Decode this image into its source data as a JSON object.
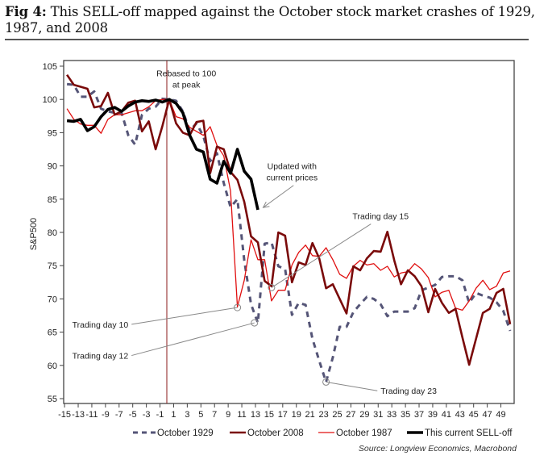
{
  "header": {
    "fig_label": "Fig 4:",
    "title_rest": " This SELL-off mapped against the October stock market crashes of 1929, 1987, and 2008"
  },
  "chart_data": {
    "type": "line",
    "title": "This SELL-off mapped against the October stock market crashes of 1929, 1987, and 2008",
    "xlabel": "",
    "ylabel": "S&P500",
    "xlim": [
      -15,
      51
    ],
    "ylim": [
      55,
      105
    ],
    "yticks": [
      55,
      60,
      65,
      70,
      75,
      80,
      85,
      90,
      95,
      100,
      105
    ],
    "xticks": [
      -15,
      -13,
      -11,
      -9,
      -7,
      -5,
      -3,
      -1,
      1,
      3,
      5,
      7,
      9,
      11,
      13,
      15,
      17,
      19,
      21,
      23,
      25,
      27,
      29,
      31,
      33,
      35,
      37,
      39,
      41,
      43,
      45,
      47,
      49
    ],
    "grid": false,
    "legend_position": "bottom",
    "reference_line": {
      "x": 0,
      "color": "#8b1a1a"
    },
    "series": [
      {
        "name": "October 1929",
        "color": "#555577",
        "style": "dashed",
        "x": [
          -15,
          -14,
          -13,
          -12,
          -11,
          -10,
          -9,
          -8,
          -7,
          -6,
          -5,
          -4,
          -3,
          -2,
          -1,
          0,
          1,
          2,
          3,
          4,
          5,
          6,
          7,
          8,
          9,
          10,
          11,
          12,
          13,
          14,
          15,
          16,
          17,
          18,
          19,
          20,
          21,
          22,
          23,
          24,
          25,
          26,
          27,
          28,
          29,
          30,
          31,
          32,
          33,
          34,
          35,
          36,
          37,
          38,
          39,
          40,
          41,
          42,
          43,
          44,
          45,
          46,
          47,
          48,
          49,
          50
        ],
        "values": [
          102.3,
          102.2,
          100.4,
          100.4,
          101.2,
          98.6,
          98.2,
          98.0,
          98.0,
          94.6,
          93.2,
          97.7,
          98.6,
          98.9,
          100.1,
          100,
          99.8,
          98.2,
          95.3,
          96.4,
          94.5,
          90.7,
          91.9,
          87.4,
          83.8,
          85.0,
          75.8,
          69.2,
          66.4,
          78.3,
          78.5,
          74.9,
          74.5,
          67.6,
          69.4,
          69.1,
          64.0,
          60.7,
          57.5,
          61.2,
          65.8,
          65.8,
          68.0,
          69.2,
          70.3,
          70.0,
          69.2,
          67.4,
          68.1,
          68.1,
          68.1,
          68.6,
          71.3,
          71.7,
          72.1,
          73.3,
          73.4,
          73.4,
          72.8,
          69.4,
          70.9,
          70.5,
          70.2,
          69.5,
          68.2,
          65.2
        ]
      },
      {
        "name": "October 2008",
        "color": "#7a0a0a",
        "style": "solid-thick",
        "x": [
          -15,
          -14,
          -13,
          -12,
          -11,
          -10,
          -9,
          -8,
          -7,
          -6,
          -5,
          -4,
          -3,
          -2,
          -1,
          0,
          1,
          2,
          3,
          4,
          5,
          6,
          7,
          8,
          9,
          10,
          11,
          12,
          13,
          14,
          15,
          16,
          17,
          18,
          19,
          20,
          21,
          22,
          23,
          24,
          25,
          26,
          27,
          28,
          29,
          30,
          31,
          32,
          33,
          34,
          35,
          36,
          37,
          38,
          39,
          40,
          41,
          42,
          43,
          44,
          45,
          46,
          47,
          48,
          49,
          50
        ],
        "values": [
          103.7,
          102.2,
          101.9,
          101.6,
          98.8,
          99.0,
          101.0,
          97.7,
          98.2,
          99.5,
          99.8,
          95.2,
          96.7,
          92.5,
          96.0,
          100,
          96.4,
          95.0,
          94.6,
          96.6,
          96.8,
          88.9,
          92.9,
          92.5,
          89.1,
          87.9,
          84.6,
          79.4,
          78.5,
          72.7,
          71.9,
          80.0,
          79.5,
          72.5,
          75.5,
          75.1,
          78.4,
          76.1,
          71.6,
          72.2,
          70.0,
          67.8,
          74.9,
          74.3,
          76.1,
          77.2,
          77.1,
          80.1,
          75.8,
          72.2,
          74.3,
          73.4,
          71.9,
          68.0,
          71.5,
          69.4,
          67.9,
          68.5,
          64.2,
          60.1,
          64.0,
          67.9,
          68.5,
          70.9,
          71.5,
          66.2
        ]
      },
      {
        "name": "October 1987",
        "color": "#e01010",
        "style": "solid-thin",
        "x": [
          -15,
          -14,
          -13,
          -12,
          -11,
          -10,
          -9,
          -8,
          -7,
          -6,
          -5,
          -4,
          -3,
          -2,
          -1,
          0,
          1,
          2,
          3,
          4,
          5,
          6,
          7,
          8,
          9,
          10,
          11,
          12,
          13,
          14,
          15,
          16,
          17,
          18,
          19,
          20,
          21,
          22,
          23,
          24,
          25,
          26,
          27,
          28,
          29,
          30,
          31,
          32,
          33,
          34,
          35,
          36,
          37,
          38,
          39,
          40,
          41,
          42,
          43,
          44,
          45,
          46,
          47,
          48,
          49,
          50
        ],
        "values": [
          98.6,
          97.0,
          96.3,
          96.1,
          96.1,
          94.9,
          97.0,
          97.7,
          97.7,
          98.0,
          98.3,
          98.3,
          98.9,
          99.8,
          100.0,
          100,
          97.4,
          97.1,
          95.8,
          95.2,
          94.6,
          95.9,
          93.1,
          91.5,
          86.2,
          68.8,
          72.8,
          78.9,
          75.9,
          75.9,
          69.7,
          71.3,
          71.3,
          75.1,
          77.0,
          78.1,
          76.5,
          76.4,
          77.7,
          75.9,
          73.7,
          73.1,
          74.9,
          75.8,
          75.1,
          75.3,
          74.3,
          74.9,
          73.3,
          73.9,
          74.1,
          75.3,
          74.5,
          73.2,
          70.3,
          71.0,
          71.3,
          68.6,
          68.3,
          69.7,
          71.6,
          72.8,
          71.4,
          71.9,
          73.9,
          74.2
        ]
      },
      {
        "name": "This current SELL-off",
        "color": "#000000",
        "style": "solid-thickest",
        "x": [
          -15,
          -14,
          -13,
          -12,
          -11,
          -10,
          -9,
          -8,
          -7,
          -6,
          -5,
          -4,
          -3,
          -2,
          -1,
          0,
          1,
          2,
          3,
          4,
          5,
          6,
          7,
          8,
          9,
          10,
          11,
          12,
          13
        ],
        "values": [
          96.8,
          96.7,
          97.0,
          95.3,
          95.9,
          97.4,
          98.5,
          98.8,
          98.2,
          99.0,
          99.6,
          99.8,
          99.7,
          99.9,
          99.6,
          100,
          99.4,
          98.0,
          94.6,
          92.5,
          92.1,
          88.0,
          87.4,
          90.7,
          88.9,
          92.5,
          89.2,
          88.0,
          83.4
        ]
      }
    ],
    "annotations": [
      {
        "text": "Rebased to 100 at peak",
        "lines": [
          "Rebased to 100",
          "at peak"
        ],
        "x": 2.5,
        "y": 103.5
      },
      {
        "text": "Updated with current prices",
        "lines": [
          "Updated with",
          "current prices"
        ],
        "x": 18,
        "y": 89.5,
        "arrow_to": [
          13.3,
          83.5
        ]
      },
      {
        "text": "Trading day 15",
        "lines": [
          "Trading day 15"
        ],
        "x": 31,
        "y": 82,
        "point": [
          15,
          71.7
        ]
      },
      {
        "text": "Trading day 10",
        "lines": [
          "Trading day 10"
        ],
        "x": -6,
        "y": 65.7,
        "point": [
          10,
          68.7
        ]
      },
      {
        "text": "Trading day 12",
        "lines": [
          "Trading day 12"
        ],
        "x": -6,
        "y": 61,
        "point": [
          12.5,
          66.4
        ]
      },
      {
        "text": "Trading day 23",
        "lines": [
          "Trading day 23"
        ],
        "x": 31,
        "y": 55.7,
        "point": [
          23,
          57.5
        ]
      }
    ]
  },
  "footer": {
    "source": "Source: Longview Economics, Macrobond"
  }
}
